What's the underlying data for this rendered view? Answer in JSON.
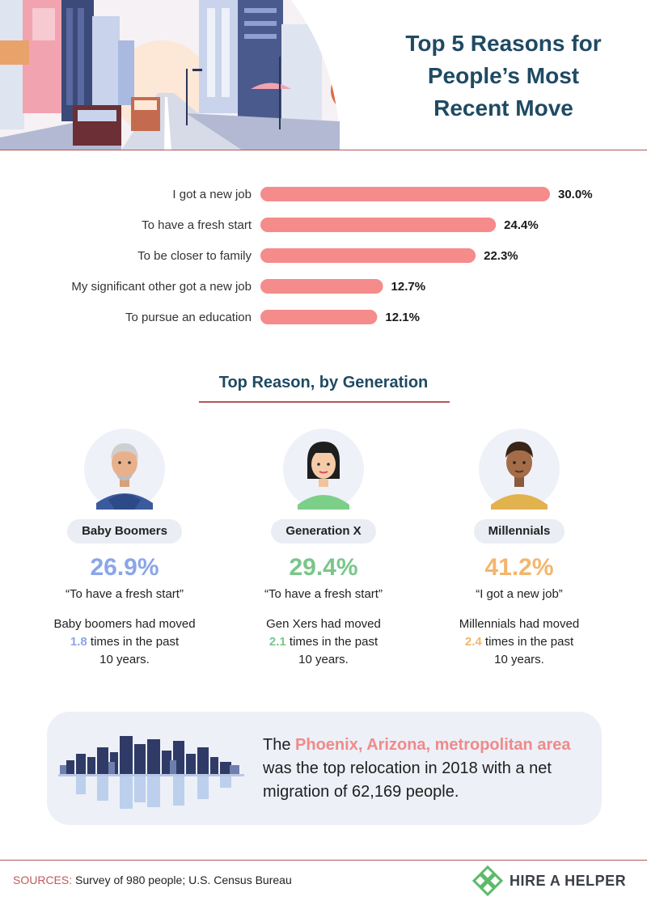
{
  "header": {
    "title_lines": [
      "Top 5 Reasons for",
      "People’s Most",
      "Recent Move"
    ]
  },
  "chart_data": {
    "type": "bar",
    "orientation": "horizontal",
    "categories": [
      "I got a new job",
      "To have a fresh start",
      "To be closer to family",
      "My significant other got a new job",
      "To pursue an education"
    ],
    "values": [
      30.0,
      24.4,
      22.3,
      12.7,
      12.1
    ],
    "value_labels": [
      "30.0%",
      "24.4%",
      "22.3%",
      "12.7%",
      "12.1%"
    ],
    "xlim": [
      0,
      30
    ],
    "grid": false,
    "bar_color": "#f58b8b"
  },
  "generations": {
    "title": "Top Reason, by Generation",
    "items": [
      {
        "name": "Baby Boomers",
        "pct": "26.9%",
        "quote": "“To have a fresh start”",
        "note_before": "Baby boomers had moved",
        "count": "1.8",
        "note_after": "times in the past",
        "note_end": "10 years.",
        "color": "#8aa6e8",
        "icon": "boomer-avatar-icon"
      },
      {
        "name": "Generation X",
        "pct": "29.4%",
        "quote": "“To have a fresh start”",
        "note_before": "Gen Xers had moved",
        "count": "2.1",
        "note_after": "times in the past",
        "note_end": "10 years.",
        "color": "#79c68a",
        "icon": "genx-avatar-icon"
      },
      {
        "name": "Millennials",
        "pct": "41.2%",
        "quote": "“I got a new job”",
        "note_before": "Millennials had moved",
        "count": "2.4",
        "note_after": "times in the past",
        "note_end": "10 years.",
        "color": "#f3b66e",
        "icon": "millennial-avatar-icon"
      }
    ]
  },
  "callout": {
    "text_before": "The",
    "highlight": "Phoenix, Arizona, metropolitan area",
    "text_after": "was the top relocation in 2018 with a net migration of 62,169 people.",
    "highlight_color": "#f08a8a",
    "icon": "city-skyline-icon"
  },
  "footer": {
    "sources_label": "SOURCES:",
    "sources_text": "Survey of 980 people; U.S. Census Bureau",
    "brand": "HIRE A HELPER",
    "brand_icon": "hire-a-helper-logo-icon"
  }
}
